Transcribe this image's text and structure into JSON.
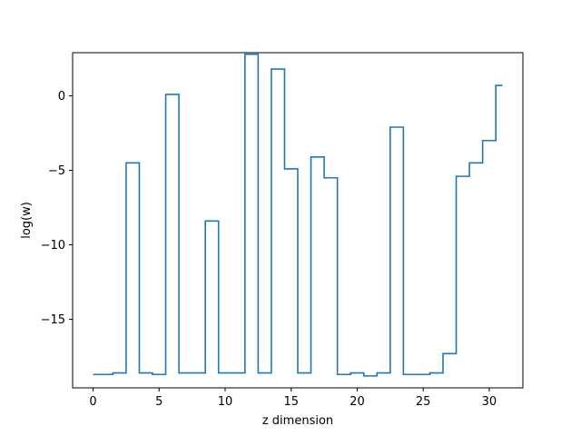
{
  "chart_data": {
    "type": "line",
    "style": "step-mid",
    "xlabel": "z dimension",
    "ylabel": "log(w)",
    "xlim": [
      -1.55,
      32.55
    ],
    "ylim": [
      -19.6,
      2.9
    ],
    "xticks": [
      0,
      5,
      10,
      15,
      20,
      25,
      30
    ],
    "yticks": [
      -15,
      -10,
      -5,
      0
    ],
    "ytick_labels": [
      "−15",
      "−10",
      "−5",
      "0"
    ],
    "grid": false,
    "series": [
      {
        "color": "#1f77b4",
        "x": [
          0,
          1,
          2,
          3,
          4,
          5,
          6,
          7,
          8,
          9,
          10,
          11,
          12,
          13,
          14,
          15,
          16,
          17,
          18,
          19,
          20,
          21,
          22,
          23,
          24,
          25,
          26,
          27,
          28,
          29,
          30,
          31
        ],
        "y": [
          -18.7,
          -18.7,
          -18.6,
          -4.5,
          -18.6,
          -18.7,
          0.1,
          -18.6,
          -18.6,
          -8.4,
          -18.6,
          -18.6,
          2.8,
          -18.6,
          1.8,
          -4.9,
          -18.6,
          -4.1,
          -5.5,
          -18.7,
          -18.6,
          -18.8,
          -18.6,
          -2.1,
          -18.7,
          -18.7,
          -18.6,
          -17.3,
          -5.4,
          -4.5,
          -3.0,
          0.7
        ]
      }
    ]
  }
}
